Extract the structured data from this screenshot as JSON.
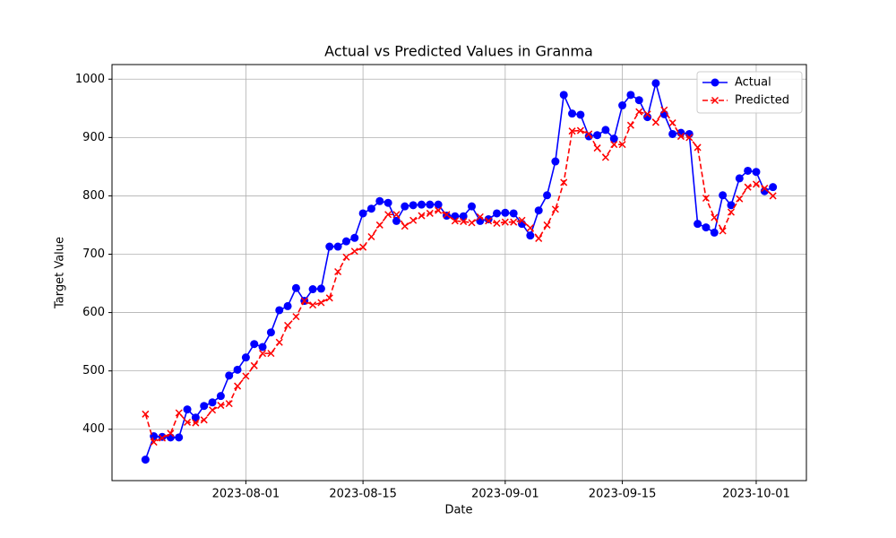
{
  "chart_data": {
    "type": "line",
    "title": "Actual vs Predicted Values in Granma",
    "x_label": "Date",
    "y_label": "Target Value",
    "x": [
      "2023-07-20",
      "2023-07-21",
      "2023-07-22",
      "2023-07-23",
      "2023-07-24",
      "2023-07-25",
      "2023-07-26",
      "2023-07-27",
      "2023-07-28",
      "2023-07-29",
      "2023-07-30",
      "2023-07-31",
      "2023-08-01",
      "2023-08-02",
      "2023-08-03",
      "2023-08-04",
      "2023-08-05",
      "2023-08-06",
      "2023-08-07",
      "2023-08-08",
      "2023-08-09",
      "2023-08-10",
      "2023-08-11",
      "2023-08-12",
      "2023-08-13",
      "2023-08-14",
      "2023-08-15",
      "2023-08-16",
      "2023-08-17",
      "2023-08-18",
      "2023-08-19",
      "2023-08-20",
      "2023-08-21",
      "2023-08-22",
      "2023-08-23",
      "2023-08-24",
      "2023-08-25",
      "2023-08-26",
      "2023-08-27",
      "2023-08-28",
      "2023-08-29",
      "2023-08-30",
      "2023-08-31",
      "2023-09-01",
      "2023-09-02",
      "2023-09-03",
      "2023-09-04",
      "2023-09-05",
      "2023-09-06",
      "2023-09-07",
      "2023-09-08",
      "2023-09-09",
      "2023-09-10",
      "2023-09-11",
      "2023-09-12",
      "2023-09-13",
      "2023-09-14",
      "2023-09-15",
      "2023-09-16",
      "2023-09-17",
      "2023-09-18",
      "2023-09-19",
      "2023-09-20",
      "2023-09-21",
      "2023-09-22",
      "2023-09-23",
      "2023-09-24",
      "2023-09-25",
      "2023-09-26",
      "2023-09-27",
      "2023-09-28",
      "2023-09-29",
      "2023-09-30",
      "2023-10-01",
      "2023-10-02",
      "2023-10-03"
    ],
    "series": [
      {
        "name": "Actual",
        "color": "#0000ff",
        "marker": "o",
        "linestyle": "solid",
        "values": [
          348,
          388,
          387,
          386,
          386,
          434,
          420,
          440,
          446,
          457,
          492,
          502,
          523,
          546,
          541,
          566,
          604,
          611,
          642,
          620,
          640,
          641,
          713,
          713,
          722,
          728,
          770,
          778,
          791,
          788,
          757,
          782,
          784,
          785,
          785,
          785,
          766,
          765,
          765,
          782,
          757,
          760,
          770,
          771,
          770,
          752,
          732,
          775,
          801,
          859,
          973,
          941,
          939,
          902,
          904,
          913,
          898,
          955,
          973,
          964,
          935,
          993,
          940,
          906,
          908,
          906,
          752,
          746,
          737,
          801,
          784,
          830,
          843,
          841,
          808,
          815
        ]
      },
      {
        "name": "Predicted",
        "color": "#ff0000",
        "marker": "x",
        "linestyle": "dashed",
        "values": [
          426,
          378,
          385,
          393,
          428,
          412,
          411,
          416,
          433,
          441,
          444,
          474,
          491,
          509,
          530,
          530,
          549,
          578,
          593,
          620,
          613,
          617,
          625,
          670,
          695,
          705,
          712,
          730,
          750,
          768,
          768,
          748,
          758,
          766,
          770,
          775,
          768,
          757,
          756,
          754,
          764,
          757,
          753,
          755,
          755,
          758,
          745,
          727,
          750,
          777,
          823,
          911,
          912,
          906,
          882,
          866,
          888,
          888,
          921,
          944,
          940,
          926,
          947,
          925,
          902,
          900,
          883,
          796,
          763,
          740,
          772,
          795,
          815,
          820,
          813,
          800
        ]
      }
    ],
    "xlim": [
      "2023-07-16",
      "2023-10-07"
    ],
    "xticks": [
      "2023-08-01",
      "2023-08-15",
      "2023-09-01",
      "2023-09-15",
      "2023-10-01"
    ],
    "ylim": [
      312,
      1025
    ],
    "yticks": [
      400,
      500,
      600,
      700,
      800,
      900,
      1000
    ],
    "grid": true,
    "legend": "upper right"
  }
}
